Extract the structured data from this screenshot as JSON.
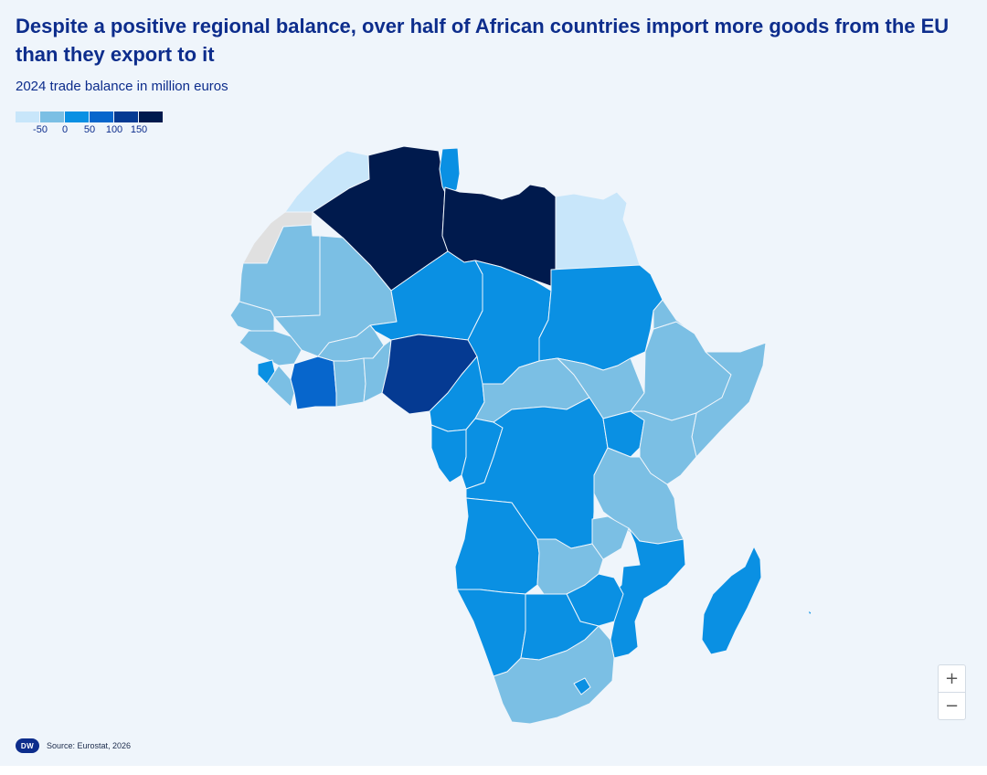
{
  "header": {
    "title": "Despite a positive regional balance, over half of African countries import more goods from the EU than they export to it",
    "subtitle": "2024 trade balance in million euros"
  },
  "legend": {
    "swatch_colors": [
      "#c8e6fa",
      "#7bbfe4",
      "#0a90e3",
      "#0766cc",
      "#053a92",
      "#001a4d"
    ],
    "ticks": [
      "-50",
      "0",
      "50",
      "100",
      "150"
    ]
  },
  "map": {
    "palette": {
      "below_-50": "#c8e6fa",
      "-50_to_0": "#7bbfe4",
      "0_to_50": "#0a90e3",
      "50_to_100": "#0766cc",
      "100_to_150": "#053a92",
      "above_150": "#001a4d",
      "no_data": "#e0e0e0"
    }
  },
  "controls": {
    "zoom_in": "+",
    "zoom_out": "−"
  },
  "footer": {
    "logo_text": "DW",
    "source": "Source: Eurostat, 2026"
  }
}
